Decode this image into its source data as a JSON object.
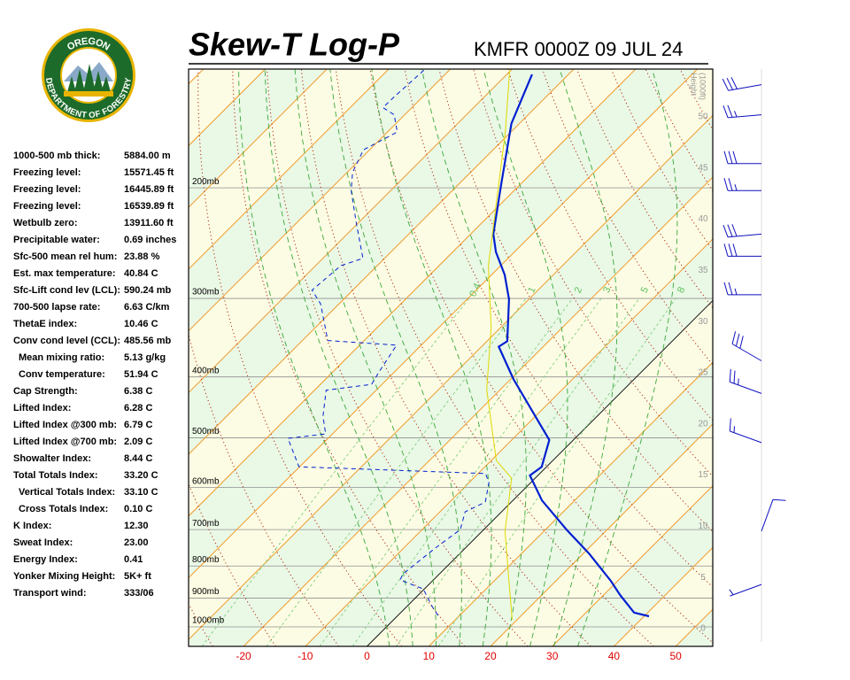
{
  "header": {
    "title": "Skew-T Log-P",
    "station": "KMFR 0000Z 09 JUL 24"
  },
  "logo": {
    "top": "OREGON",
    "bottom": "DEPARTMENT OF FORESTRY"
  },
  "indices": [
    {
      "label": "1000-500 mb thick:",
      "value": "5884.00 m"
    },
    {
      "label": "Freezing level:",
      "value": "15571.45 ft"
    },
    {
      "label": "Freezing level:",
      "value": "16445.89 ft"
    },
    {
      "label": "Freezing level:",
      "value": "16539.89 ft"
    },
    {
      "label": "Wetbulb zero:",
      "value": "13911.60 ft"
    },
    {
      "label": "Precipitable water:",
      "value": "0.69 inches"
    },
    {
      "label": "Sfc-500 mean rel hum:",
      "value": "23.88 %"
    },
    {
      "label": "Est. max temperature:",
      "value": "40.84 C"
    },
    {
      "label": "Sfc-Lift cond lev (LCL):",
      "value": "590.24 mb"
    },
    {
      "label": "700-500 lapse rate:",
      "value": "6.63 C/km"
    },
    {
      "label": "ThetaE index:",
      "value": "10.46 C"
    },
    {
      "label": "Conv cond level (CCL):",
      "value": "485.56 mb"
    },
    {
      "label": "Mean mixing ratio:",
      "value": "5.13 g/kg"
    },
    {
      "label": "Conv temperature:",
      "value": "51.94 C"
    },
    {
      "label": "Cap Strength:",
      "value": "6.38 C"
    },
    {
      "label": "Lifted Index:",
      "value": "6.28 C"
    },
    {
      "label": "Lifted Index @300 mb:",
      "value": "6.79 C"
    },
    {
      "label": "Lifted Index @700 mb:",
      "value": "2.09 C"
    },
    {
      "label": "Showalter Index:",
      "value": "8.44 C"
    },
    {
      "label": "Total Totals Index:",
      "value": "33.20 C"
    },
    {
      "label": "Vertical Totals Index:",
      "value": "33.10 C"
    },
    {
      "label": "Cross Totals Index:",
      "value": "0.10 C"
    },
    {
      "label": "K Index:",
      "value": "12.30"
    },
    {
      "label": "Sweat Index:",
      "value": "23.00"
    },
    {
      "label": "Energy Index:",
      "value": "0.41"
    },
    {
      "label": "Yonker Mixing Height:",
      "value": "5K+ ft"
    },
    {
      "label": "Transport wind:",
      "value": "333/06"
    }
  ],
  "chart_data": {
    "type": "skewt",
    "log_y": true,
    "xlim": [
      -28.9,
      56
    ],
    "xticks": [
      -20,
      -10,
      0,
      10,
      20,
      30,
      40,
      50
    ],
    "ylim": [
      1074,
      129.4
    ],
    "yticks": [
      {
        "value": 1000,
        "label": "1000mb"
      },
      {
        "value": 900,
        "label": "900mb"
      },
      {
        "value": 800,
        "label": "800mb"
      },
      {
        "value": 700,
        "label": "700mb"
      },
      {
        "value": 600,
        "label": "600mb"
      },
      {
        "value": 500,
        "label": "500mb"
      },
      {
        "value": 400,
        "label": "400mb"
      },
      {
        "value": 300,
        "label": "300mb"
      },
      {
        "value": 200,
        "label": "200mb"
      }
    ],
    "height_label": [
      "Height",
      "(1000ft)"
    ],
    "hlim": [
      -1.73,
      54.67
    ],
    "hticks": [
      0,
      5,
      10,
      15,
      20,
      25,
      30,
      35,
      40,
      45,
      50
    ],
    "bands": [
      "#fcfce4",
      "#eaf8e6"
    ],
    "isotherms": [
      -120,
      -110,
      -100,
      -90,
      -80,
      -70,
      -60,
      -50,
      -40,
      -30,
      -20,
      -10,
      0,
      10,
      20,
      30,
      40,
      50
    ],
    "highlight_isotherm": 0,
    "dry_adiabats": [
      -40,
      -30,
      -20,
      -10,
      0,
      10,
      20,
      30,
      40,
      50,
      60,
      70,
      80,
      90,
      100,
      110,
      120,
      130,
      140,
      150,
      160
    ],
    "moist_adiabats": [
      0,
      4,
      8,
      12,
      16,
      20,
      24,
      28,
      32
    ],
    "mixing_ratio": [
      0.4,
      1,
      2,
      3,
      5,
      8
    ],
    "series": [
      {
        "color": "#0020d0",
        "style": "solid",
        "pressure": [
          961.8,
          949,
          890,
          845,
          764,
          700,
          629,
          574,
          556,
          504,
          403,
          358,
          351,
          301,
          275,
          253,
          237,
          198,
          158,
          132
        ],
        "values": [
          40.8,
          37.8,
          32.7,
          28.9,
          20.9,
          13.4,
          4.7,
          -1.3,
          -0.8,
          -3.9,
          -19.6,
          -27.2,
          -26.7,
          -33.2,
          -37.9,
          -43,
          -46.3,
          -53,
          -61.3,
          -65.9
        ]
      },
      {
        "color": "#0020d0",
        "style": "dashed",
        "pressure": [
          959,
          928,
          870,
          842,
          823,
          751,
          700,
          656,
          633,
          589,
          570,
          556,
          501,
          493,
          462,
          420,
          411,
          393,
          356,
          350,
          306,
          291,
          266,
          259,
          228,
          202,
          189,
          174,
          163,
          153,
          149,
          143,
          130
        ],
        "values": [
          6.5,
          4.1,
          -0.2,
          -5.4,
          -5.9,
          -4.9,
          -3.8,
          -5.9,
          -4.2,
          -6.8,
          -8.8,
          -40.1,
          -46.5,
          -41.1,
          -44.4,
          -48.1,
          -41.7,
          -42.5,
          -44,
          -55.9,
          -63,
          -66.6,
          -65.9,
          -63.5,
          -70.2,
          -76.4,
          -79.1,
          -81,
          -78.4,
          -81.7,
          -84.7,
          -84.6,
          -84.1
        ]
      },
      {
        "color": "#e0d800",
        "style": "solid",
        "pressure": [
          974,
          856,
          704,
          580,
          543,
          419,
          334,
          266,
          163,
          130
        ],
        "values": [
          19.2,
          13,
          3.7,
          -3.8,
          -9.2,
          -22.2,
          -31.5,
          -42,
          -60.9,
          -70.2
        ]
      }
    ],
    "winds": {
      "pressure": [
        137,
        153,
        183,
        202,
        237,
        257,
        296,
        377,
        425,
        509,
        704,
        856
      ],
      "direction": [
        260,
        265,
        270,
        270,
        265,
        270,
        270,
        300,
        290,
        290,
        20,
        250
      ],
      "speed": [
        30,
        25,
        30,
        25,
        30,
        30,
        25,
        30,
        25,
        15,
        10,
        5
      ]
    }
  }
}
